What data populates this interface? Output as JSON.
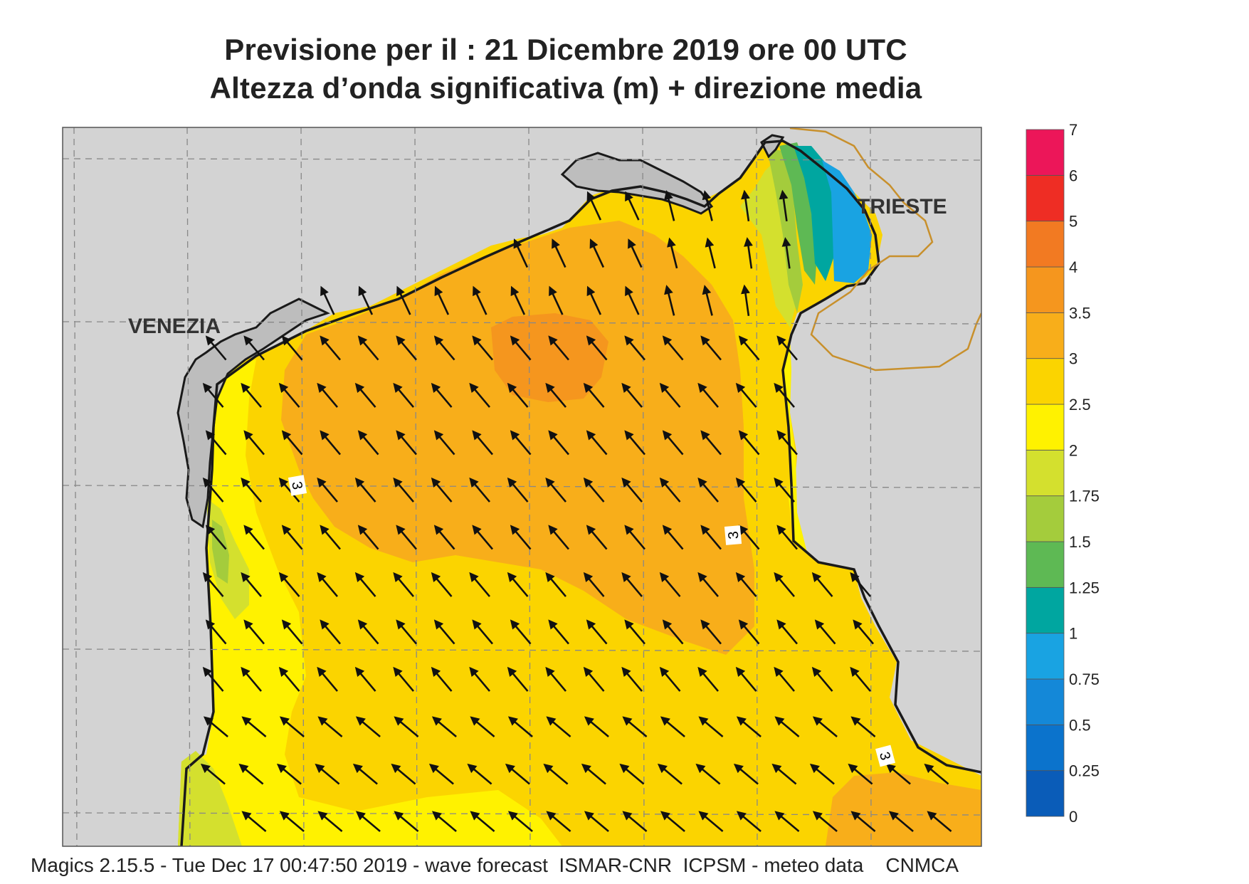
{
  "header": {
    "title_line1": "Previsione per il  :  21 Dicembre  2019   ore 00 UTC",
    "title_line2": "Altezza d’onda significativa (m) + direzione media"
  },
  "map": {
    "region": "Northern Adriatic Sea",
    "cities": [
      {
        "name": "VENEZIA"
      },
      {
        "name": "TRIESTE"
      }
    ],
    "contour_labels": [
      "3",
      "3",
      "3"
    ],
    "land_color": "#d3d3d3",
    "coast_color": "#1a1a1a",
    "border_color": "#c8902c",
    "wave_direction": "mean direction towards north-west (NNW in the north-east)"
  },
  "legend": {
    "bins": [
      {
        "label": "0",
        "color": "#0a5cb8"
      },
      {
        "label": "0.25",
        "color": "#0b73cc"
      },
      {
        "label": "0.5",
        "color": "#1488d8"
      },
      {
        "label": "0.75",
        "color": "#19a3e2"
      },
      {
        "label": "1",
        "color": "#00a6a0"
      },
      {
        "label": "1.25",
        "color": "#5eb954"
      },
      {
        "label": "1.5",
        "color": "#a4cc3c"
      },
      {
        "label": "1.75",
        "color": "#d4e02e"
      },
      {
        "label": "2",
        "color": "#fff200"
      },
      {
        "label": "2.5",
        "color": "#fbd400"
      },
      {
        "label": "3",
        "color": "#f8ae1a"
      },
      {
        "label": "3.5",
        "color": "#f5961e"
      },
      {
        "label": "4",
        "color": "#f27a22"
      },
      {
        "label": "5",
        "color": "#ee2d24"
      },
      {
        "label": "6",
        "color": "#ec1659"
      }
    ],
    "top_label": "7"
  },
  "footer": {
    "text": "Magics 2.15.5 - Tue Dec 17 00:47:50 2019 - wave forecast  ISMAR-CNR  ICPSM - meteo data    CNMCA"
  }
}
